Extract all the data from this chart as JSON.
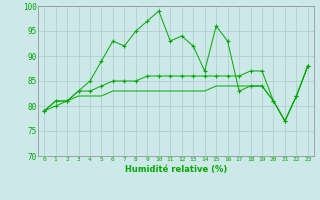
{
  "xlabel": "Humidité relative (%)",
  "bg_color": "#cce8e8",
  "grid_color": "#aacccc",
  "line_color": "#00aa00",
  "xlim": [
    -0.5,
    23.5
  ],
  "ylim": [
    70,
    100
  ],
  "yticks": [
    70,
    75,
    80,
    85,
    90,
    95,
    100
  ],
  "xticks": [
    0,
    1,
    2,
    3,
    4,
    5,
    6,
    7,
    8,
    9,
    10,
    11,
    12,
    13,
    14,
    15,
    16,
    17,
    18,
    19,
    20,
    21,
    22,
    23
  ],
  "series1": [
    79,
    80,
    81,
    83,
    85,
    89,
    93,
    92,
    95,
    97,
    99,
    93,
    94,
    92,
    87,
    96,
    93,
    83,
    84,
    84,
    81,
    77,
    82,
    88
  ],
  "series2": [
    79,
    81,
    81,
    83,
    83,
    84,
    85,
    85,
    85,
    86,
    86,
    86,
    86,
    86,
    86,
    86,
    86,
    86,
    87,
    87,
    81,
    77,
    82,
    88
  ],
  "series3": [
    79,
    81,
    81,
    82,
    82,
    82,
    83,
    83,
    83,
    83,
    83,
    83,
    83,
    83,
    83,
    84,
    84,
    84,
    84,
    84,
    81,
    77,
    82,
    88
  ]
}
